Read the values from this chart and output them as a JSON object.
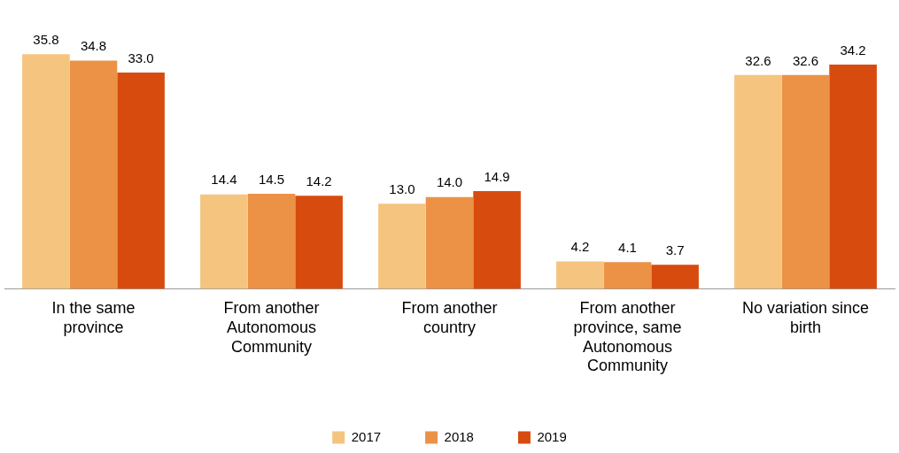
{
  "chart_data": {
    "type": "bar",
    "categories": [
      "In the same province",
      "From another Autonomous Community",
      "From another country",
      "From another province, same Autonomous Community",
      "No variation since birth"
    ],
    "series": [
      {
        "name": "2017",
        "color": "#f5c47f",
        "values": [
          35.8,
          14.4,
          13.0,
          4.2,
          32.6
        ],
        "value_labels": [
          "35.8",
          "14.4",
          "13.0",
          "4.2",
          "32.6"
        ]
      },
      {
        "name": "2018",
        "color": "#ec9246",
        "values": [
          34.8,
          14.5,
          14.0,
          4.1,
          32.6
        ],
        "value_labels": [
          "34.8",
          "14.5",
          "14.0",
          "4.1",
          "32.6"
        ]
      },
      {
        "name": "2019",
        "color": "#d84b0e",
        "values": [
          33.0,
          14.2,
          14.9,
          3.7,
          34.2
        ],
        "value_labels": [
          "33.0",
          "14.2",
          "14.9",
          "3.7",
          "34.2"
        ]
      }
    ],
    "legend": "bottom",
    "grid": false,
    "tick_labels": "x"
  }
}
